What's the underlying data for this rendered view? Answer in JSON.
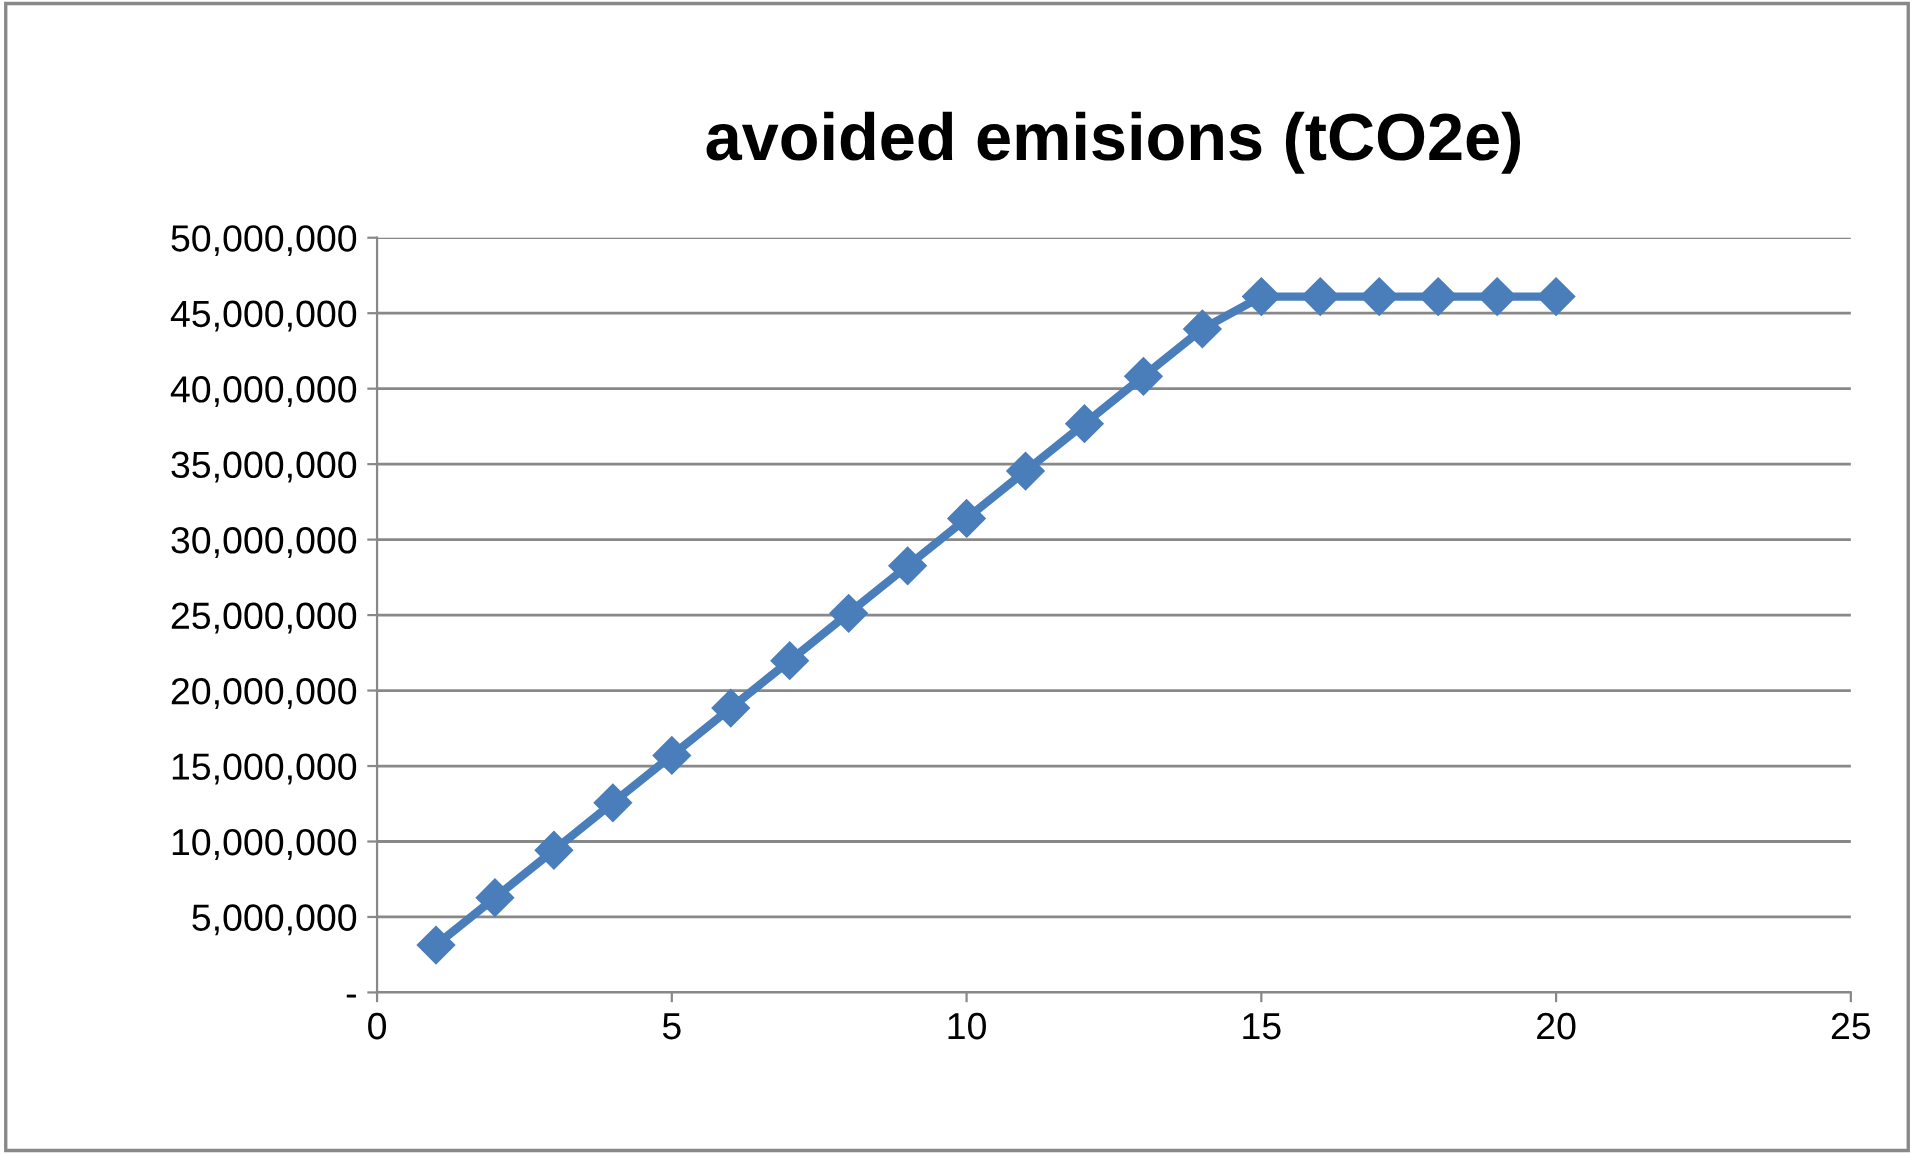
{
  "chart_data": {
    "type": "line",
    "title": "avoided emisions (tCO2e)",
    "x": [
      1,
      2,
      3,
      4,
      5,
      6,
      7,
      8,
      9,
      10,
      11,
      12,
      13,
      14,
      15,
      16,
      17,
      18,
      19,
      20
    ],
    "series": [
      {
        "color": "#4a7ebb",
        "values": [
          3140000,
          6280000,
          9420000,
          12560000,
          15700000,
          18840000,
          21980000,
          25120000,
          28260000,
          31400000,
          34540000,
          37680000,
          40820000,
          43960000,
          46100000,
          46100000,
          46100000,
          46100000,
          46100000,
          46100000
        ]
      }
    ],
    "xlim": [
      0,
      25
    ],
    "xticks": [
      0,
      5,
      10,
      15,
      20,
      25
    ],
    "ylim": [
      0,
      50000000
    ],
    "yticks": [
      {
        "value": 0,
        "label": "-"
      },
      {
        "value": 5000000,
        "label": "5,000,000"
      },
      {
        "value": 10000000,
        "label": "10,000,000"
      },
      {
        "value": 15000000,
        "label": "15,000,000"
      },
      {
        "value": 20000000,
        "label": "20,000,000"
      },
      {
        "value": 25000000,
        "label": "25,000,000"
      },
      {
        "value": 30000000,
        "label": "30,000,000"
      },
      {
        "value": 35000000,
        "label": "35,000,000"
      },
      {
        "value": 40000000,
        "label": "40,000,000"
      },
      {
        "value": 45000000,
        "label": "45,000,000"
      },
      {
        "value": 50000000,
        "label": "50,000,000"
      }
    ],
    "grid": "y",
    "legend": false,
    "marker": "diamond",
    "line_style": "solid"
  }
}
